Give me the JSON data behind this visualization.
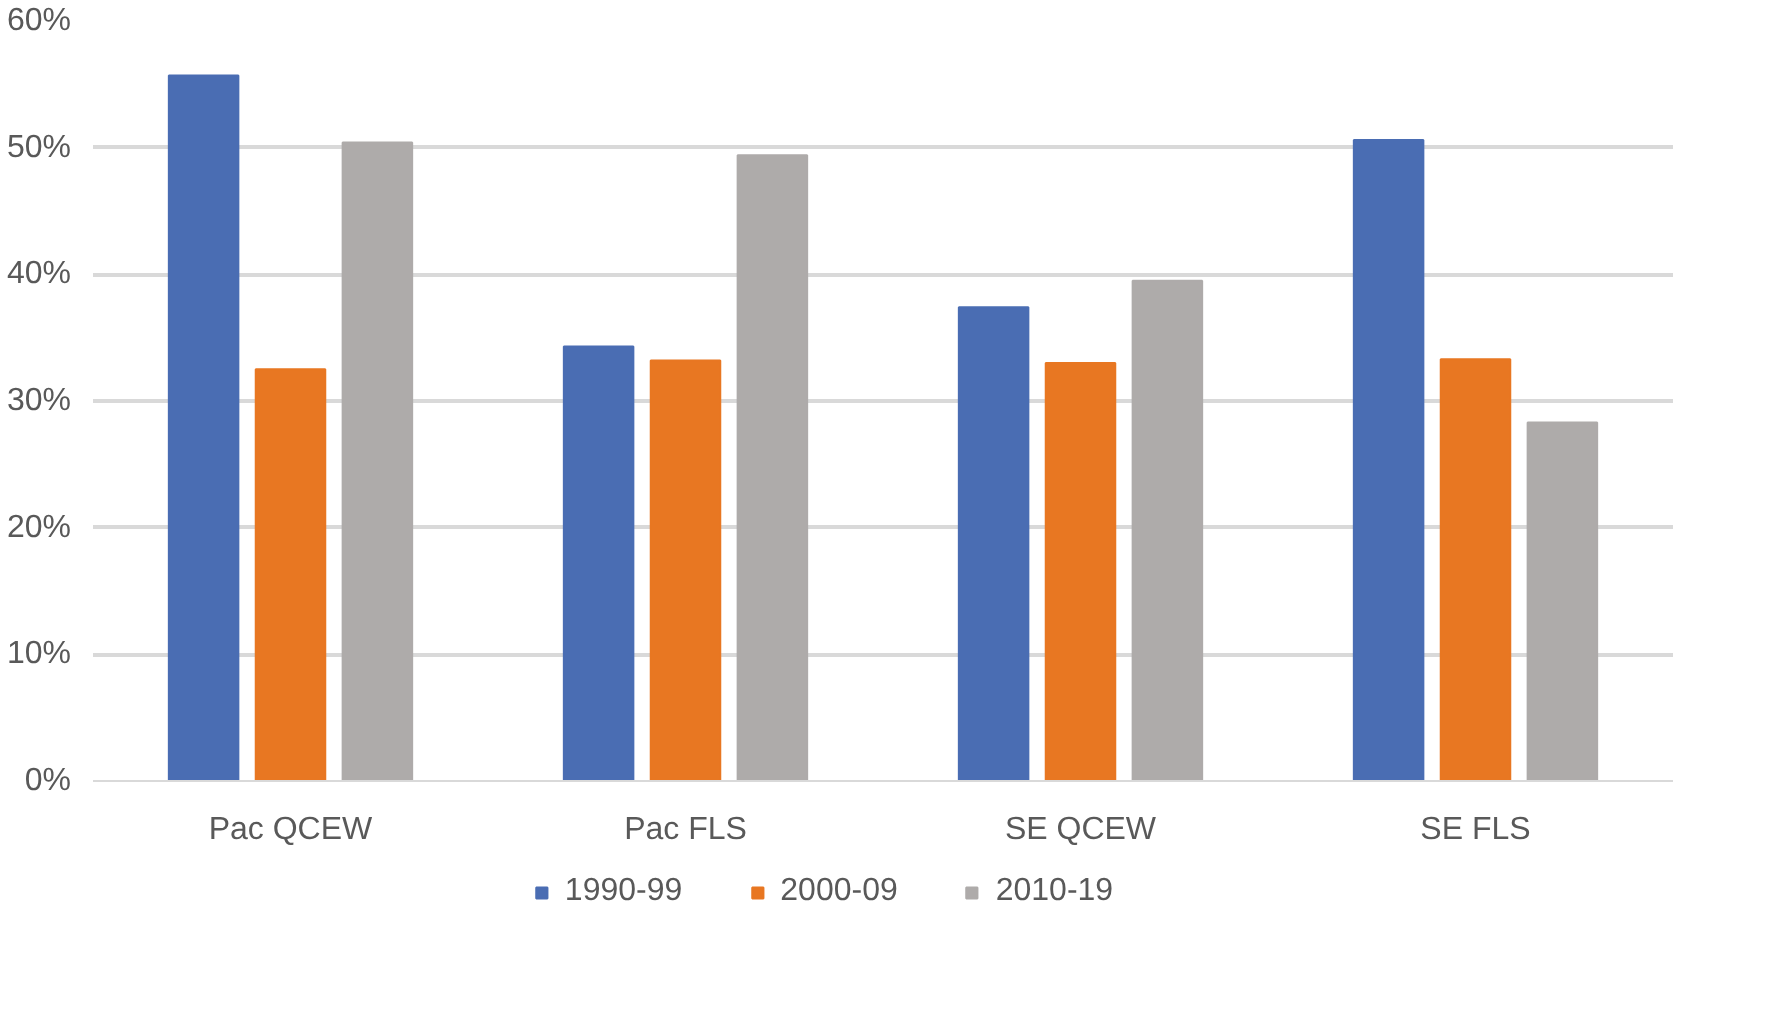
{
  "chart_data": {
    "type": "bar",
    "categories": [
      "Pac QCEW",
      "Pac FLS",
      "SE QCEW",
      "SE FLS"
    ],
    "series": [
      {
        "name": "1990-99",
        "color": "#4a6db3",
        "values": [
          55.7,
          34.3,
          37.4,
          50.6
        ]
      },
      {
        "name": "2000-09",
        "color": "#e87722",
        "values": [
          32.5,
          33.2,
          33.0,
          33.3
        ]
      },
      {
        "name": "2010-19",
        "color": "#aeabaa",
        "values": [
          50.4,
          49.4,
          39.5,
          28.3
        ]
      }
    ],
    "ylim": [
      0,
      60
    ],
    "yticks": [
      {
        "value": 0,
        "label": "0%"
      },
      {
        "value": 10,
        "label": "10%"
      },
      {
        "value": 20,
        "label": "20%"
      },
      {
        "value": 30,
        "label": "30%"
      },
      {
        "value": 40,
        "label": "40%"
      },
      {
        "value": 50,
        "label": "50%"
      },
      {
        "value": 60,
        "label": "60%"
      }
    ],
    "grid": "y",
    "legend": "bottom"
  }
}
